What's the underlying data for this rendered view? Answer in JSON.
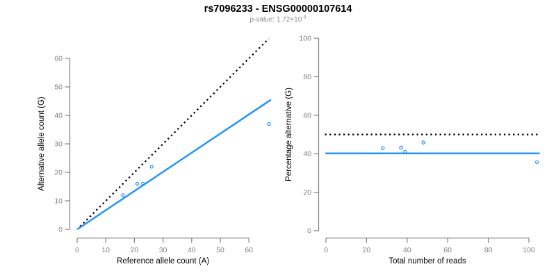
{
  "header": {
    "title": "rs7096233 - ENSG00000107614",
    "subtitle_prefix": "p-value: 1.72×10",
    "subtitle_exponent": "-3"
  },
  "colors": {
    "accent_blue": "#1E90FF",
    "line_black": "#000000",
    "axis_gray": "#808080",
    "tick_label_gray": "#7f7f7f",
    "axis_title_black": "#000000",
    "subtitle_gray": "#8a8a8a",
    "background": "#ffffff"
  },
  "chart_data": [
    {
      "type": "scatter",
      "panel": "left",
      "xlabel": "Reference allele count (A)",
      "ylabel": "Alternative allele count (G)",
      "xticks": [
        0,
        10,
        20,
        30,
        40,
        50,
        60
      ],
      "yticks": [
        0,
        10,
        20,
        30,
        40,
        50,
        60
      ],
      "xlim": [
        0,
        67.5
      ],
      "ylim": [
        0,
        67.5
      ],
      "grid": false,
      "points": [
        [
          16,
          12
        ],
        [
          21,
          16
        ],
        [
          23,
          16
        ],
        [
          26,
          22
        ],
        [
          67,
          37
        ]
      ],
      "lines": [
        {
          "name": "identity-line",
          "meaning": "expected 50% (y = x)",
          "style": "dotted",
          "color": "#000000",
          "x1": 1,
          "y1": 1,
          "x2": 66.9,
          "y2": 66.9
        },
        {
          "name": "fit-line",
          "meaning": "fitted allelic ratio (slope 0.672)",
          "style": "solid",
          "color": "#1E90FF",
          "x1": 0,
          "y1": 0,
          "x2": 67.7,
          "y2": 45.5
        }
      ]
    },
    {
      "type": "scatter",
      "panel": "right",
      "xlabel": "Total number of reads",
      "ylabel": "Percentage alternative (G)",
      "xticks": [
        0,
        20,
        40,
        60,
        80,
        100
      ],
      "yticks": [
        0,
        20,
        40,
        60,
        80,
        100
      ],
      "xlim": [
        0,
        105.5
      ],
      "ylim": [
        0,
        100
      ],
      "grid": false,
      "points": [
        [
          28,
          42.9
        ],
        [
          37,
          43.2
        ],
        [
          39,
          41.0
        ],
        [
          48,
          45.8
        ],
        [
          104,
          35.6
        ]
      ],
      "lines": [
        {
          "name": "expected-50-line",
          "meaning": "expected 50%",
          "style": "dotted",
          "color": "#000000",
          "x1": -0.5,
          "y1": 50,
          "x2": 105.3,
          "y2": 50
        },
        {
          "name": "mean-percentage-line",
          "meaning": "observed mean percentage 40.2%",
          "style": "solid",
          "color": "#1E90FF",
          "x1": -0.3,
          "y1": 40.2,
          "x2": 105.3,
          "y2": 40.2
        }
      ]
    }
  ]
}
